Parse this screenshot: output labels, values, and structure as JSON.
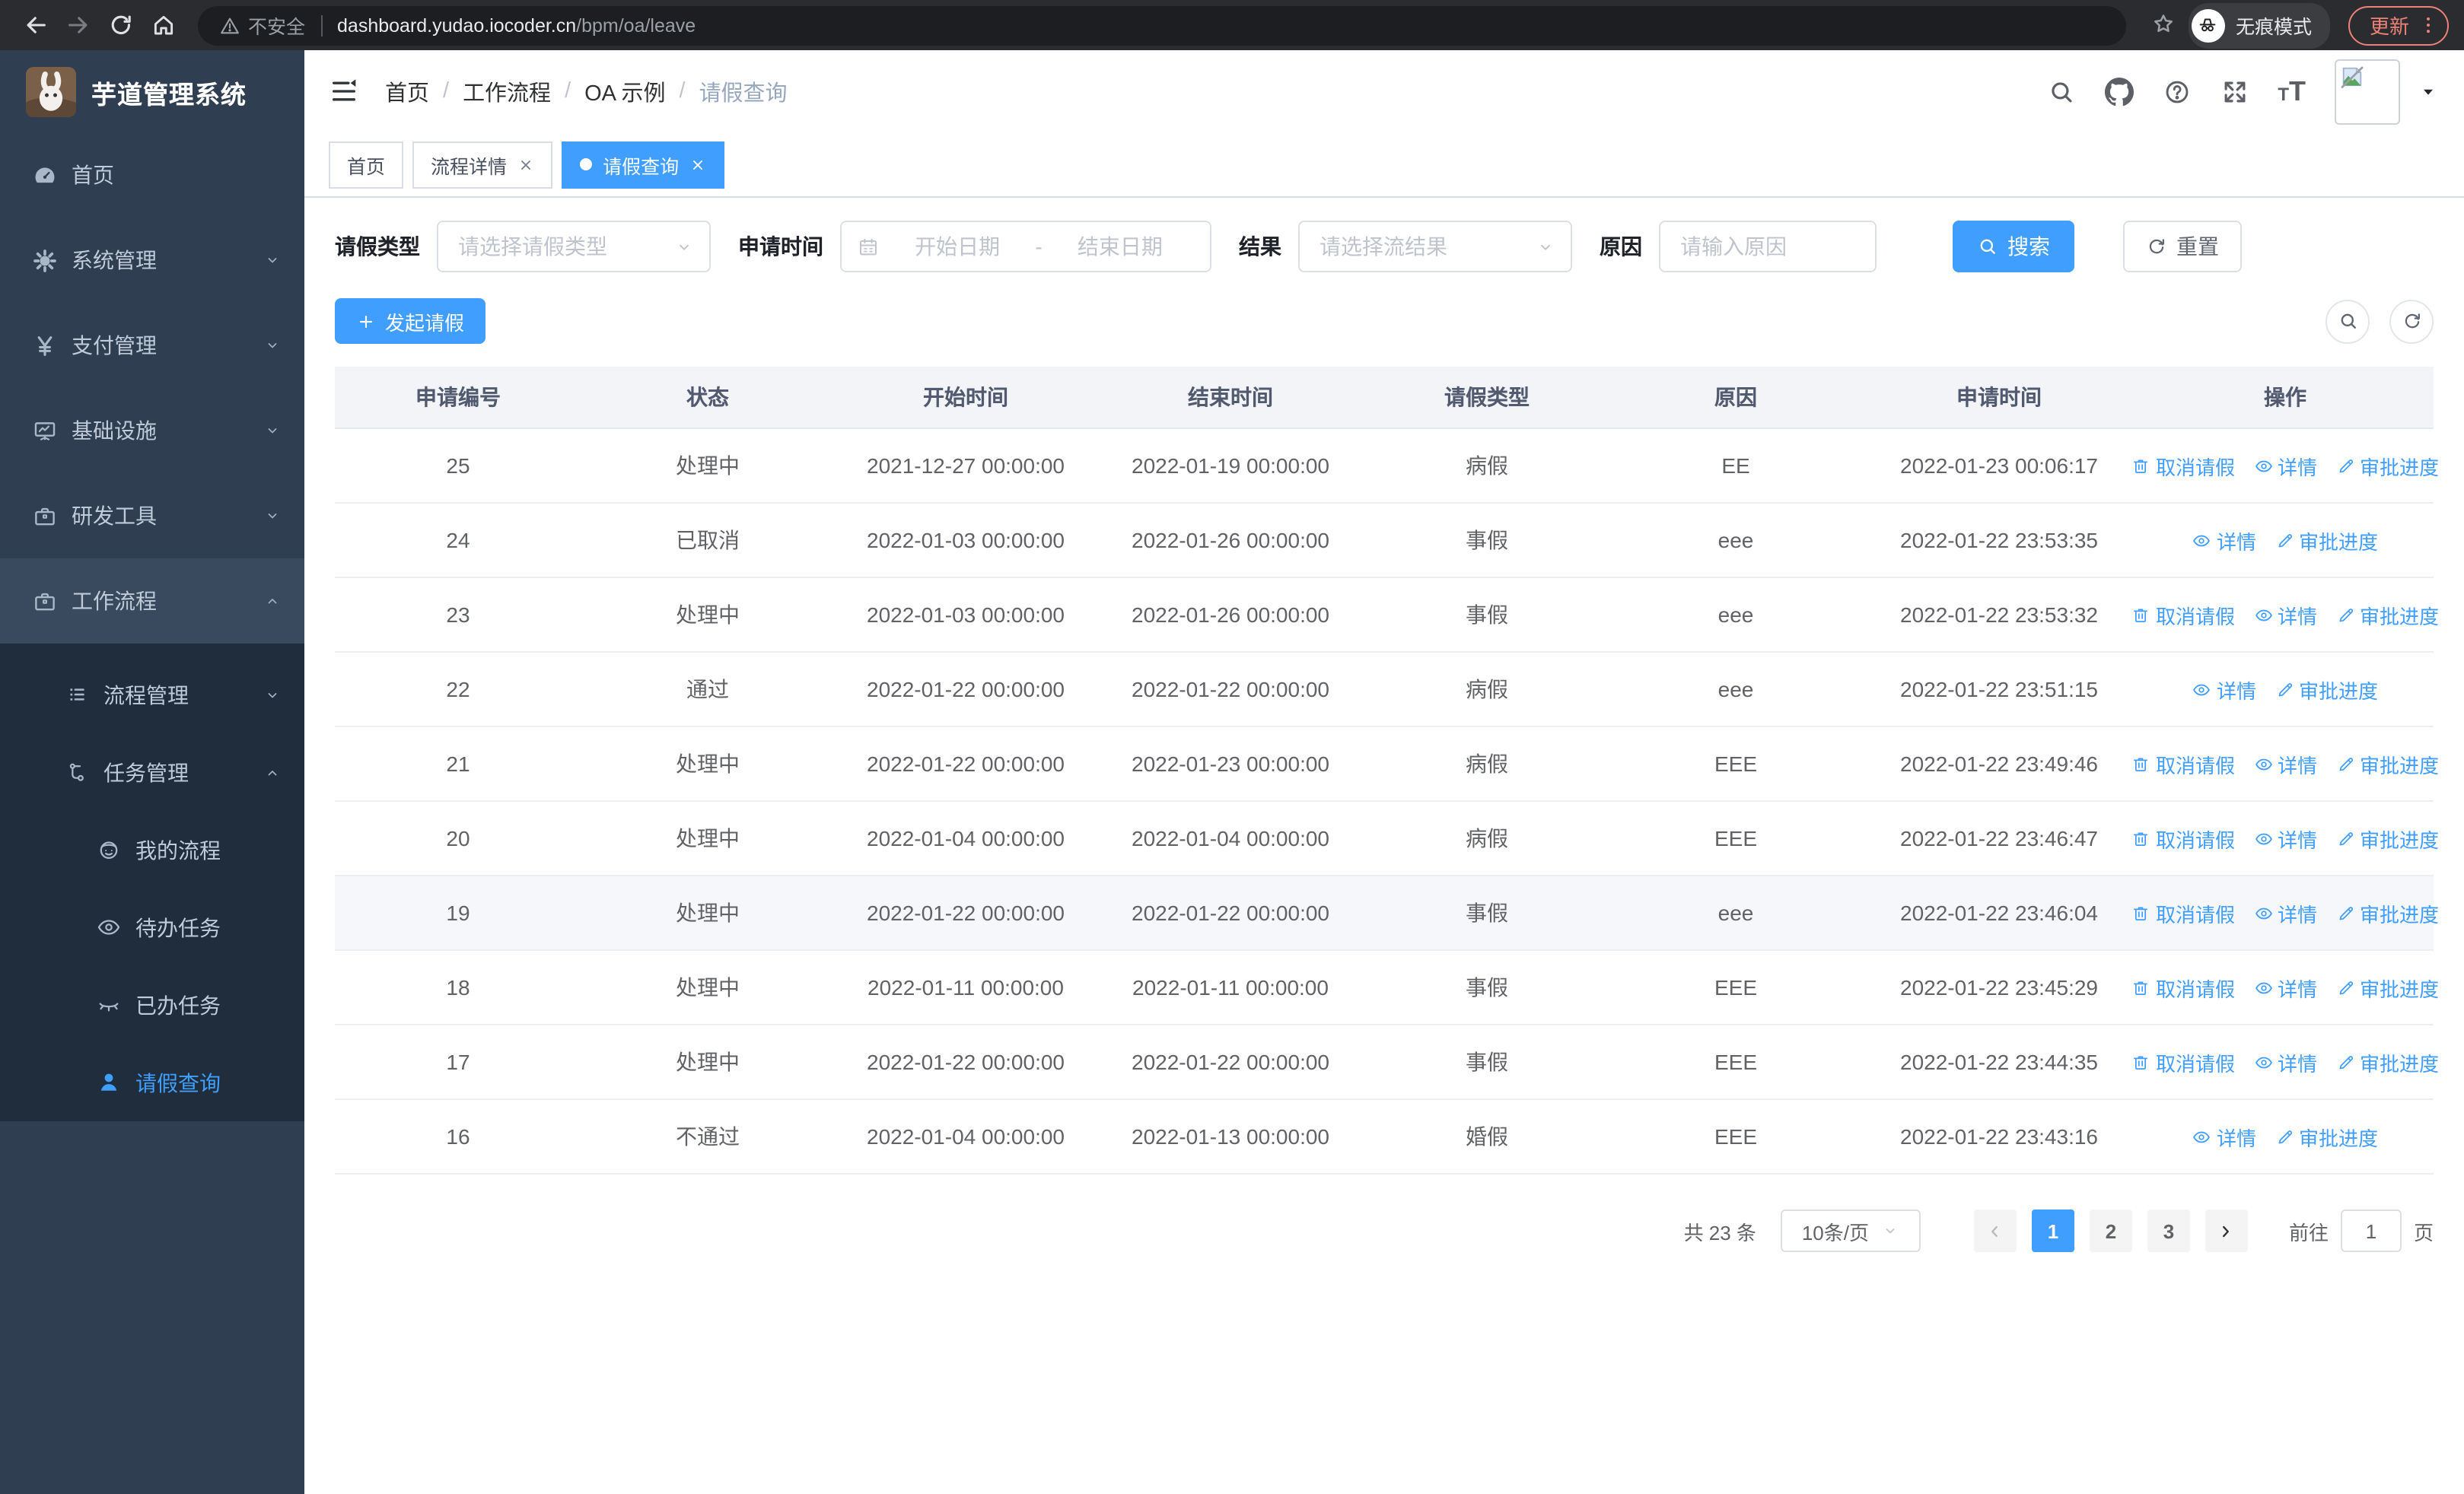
{
  "colors": {
    "primary": "#409EFF",
    "sidebar_bg": "#2f3e51",
    "submenu_bg": "#1f2d3d",
    "update_accent": "#ee8277"
  },
  "browser": {
    "security_label": "不安全",
    "url_host": "dashboard.yudao.iocoder.cn",
    "url_path": "/bpm/oa/leave",
    "incognito_label": "无痕模式",
    "update_label": "更新"
  },
  "sidebar": {
    "title": "芋道管理系统",
    "items": [
      {
        "id": "home",
        "label": "首页",
        "icon": "gauge",
        "level": 1
      },
      {
        "id": "system",
        "label": "系统管理",
        "icon": "gear",
        "level": 1,
        "chevron": "down"
      },
      {
        "id": "payment",
        "label": "支付管理",
        "icon": "yen",
        "level": 1,
        "chevron": "down"
      },
      {
        "id": "infra",
        "label": "基础设施",
        "icon": "monitor",
        "level": 1,
        "chevron": "down"
      },
      {
        "id": "devtools",
        "label": "研发工具",
        "icon": "briefcase",
        "level": 1,
        "chevron": "down"
      },
      {
        "id": "workflow",
        "label": "工作流程",
        "icon": "briefcase",
        "level": 1,
        "chevron": "up",
        "highlight": true
      },
      {
        "id": "process-mgmt",
        "label": "流程管理",
        "icon": "list",
        "level": 2,
        "chevron": "down",
        "dark": true
      },
      {
        "id": "task-mgmt",
        "label": "任务管理",
        "icon": "org",
        "level": 2,
        "chevron": "up",
        "dark": true
      },
      {
        "id": "my-process",
        "label": "我的流程",
        "icon": "face",
        "level": 3,
        "dark": true
      },
      {
        "id": "todo-tasks",
        "label": "待办任务",
        "icon": "eye",
        "level": 3,
        "dark": true
      },
      {
        "id": "done-tasks",
        "label": "已办任务",
        "icon": "eye-closed",
        "level": 3,
        "dark": true
      },
      {
        "id": "leave-query",
        "label": "请假查询",
        "icon": "person",
        "level": 3,
        "dark": true,
        "active": true
      }
    ]
  },
  "breadcrumb": {
    "separator": "/",
    "items": [
      "首页",
      "工作流程",
      "OA 示例",
      "请假查询"
    ]
  },
  "tabs": [
    {
      "id": "home",
      "label": "首页",
      "closable": false,
      "active": false
    },
    {
      "id": "process-detail",
      "label": "流程详情",
      "closable": true,
      "active": false
    },
    {
      "id": "leave-query",
      "label": "请假查询",
      "closable": true,
      "active": true
    }
  ],
  "filters": {
    "leave_type_label": "请假类型",
    "leave_type_placeholder": "请选择请假类型",
    "apply_time_label": "申请时间",
    "start_date_placeholder": "开始日期",
    "range_separator": "-",
    "end_date_placeholder": "结束日期",
    "result_label": "结果",
    "result_placeholder": "请选择流结果",
    "reason_label": "原因",
    "reason_placeholder": "请输入原因",
    "search_label": "搜索",
    "reset_label": "重置"
  },
  "toolbar": {
    "create_label": "发起请假"
  },
  "table": {
    "columns": [
      "申请编号",
      "状态",
      "开始时间",
      "结束时间",
      "请假类型",
      "原因",
      "申请时间",
      "操作"
    ],
    "action_defs": {
      "cancel": {
        "label": "取消请假",
        "icon": "trash"
      },
      "detail": {
        "label": "详情",
        "icon": "eye"
      },
      "progress": {
        "label": "审批进度",
        "icon": "pen"
      }
    },
    "rows": [
      {
        "id": "25",
        "status": "处理中",
        "start": "2021-12-27 00:00:00",
        "end": "2022-01-19 00:00:00",
        "type": "病假",
        "reason": "EE",
        "apply": "2022-01-23 00:06:17",
        "actions": [
          "cancel",
          "detail",
          "progress"
        ]
      },
      {
        "id": "24",
        "status": "已取消",
        "start": "2022-01-03 00:00:00",
        "end": "2022-01-26 00:00:00",
        "type": "事假",
        "reason": "eee",
        "apply": "2022-01-22 23:53:35",
        "actions": [
          "detail",
          "progress"
        ]
      },
      {
        "id": "23",
        "status": "处理中",
        "start": "2022-01-03 00:00:00",
        "end": "2022-01-26 00:00:00",
        "type": "事假",
        "reason": "eee",
        "apply": "2022-01-22 23:53:32",
        "actions": [
          "cancel",
          "detail",
          "progress"
        ]
      },
      {
        "id": "22",
        "status": "通过",
        "start": "2022-01-22 00:00:00",
        "end": "2022-01-22 00:00:00",
        "type": "病假",
        "reason": "eee",
        "apply": "2022-01-22 23:51:15",
        "actions": [
          "detail",
          "progress"
        ]
      },
      {
        "id": "21",
        "status": "处理中",
        "start": "2022-01-22 00:00:00",
        "end": "2022-01-23 00:00:00",
        "type": "病假",
        "reason": "EEE",
        "apply": "2022-01-22 23:49:46",
        "actions": [
          "cancel",
          "detail",
          "progress"
        ]
      },
      {
        "id": "20",
        "status": "处理中",
        "start": "2022-01-04 00:00:00",
        "end": "2022-01-04 00:00:00",
        "type": "病假",
        "reason": "EEE",
        "apply": "2022-01-22 23:46:47",
        "actions": [
          "cancel",
          "detail",
          "progress"
        ]
      },
      {
        "id": "19",
        "status": "处理中",
        "start": "2022-01-22 00:00:00",
        "end": "2022-01-22 00:00:00",
        "type": "事假",
        "reason": "eee",
        "apply": "2022-01-22 23:46:04",
        "actions": [
          "cancel",
          "detail",
          "progress"
        ],
        "hover": true
      },
      {
        "id": "18",
        "status": "处理中",
        "start": "2022-01-11 00:00:00",
        "end": "2022-01-11 00:00:00",
        "type": "事假",
        "reason": "EEE",
        "apply": "2022-01-22 23:45:29",
        "actions": [
          "cancel",
          "detail",
          "progress"
        ]
      },
      {
        "id": "17",
        "status": "处理中",
        "start": "2022-01-22 00:00:00",
        "end": "2022-01-22 00:00:00",
        "type": "事假",
        "reason": "EEE",
        "apply": "2022-01-22 23:44:35",
        "actions": [
          "cancel",
          "detail",
          "progress"
        ]
      },
      {
        "id": "16",
        "status": "不通过",
        "start": "2022-01-04 00:00:00",
        "end": "2022-01-13 00:00:00",
        "type": "婚假",
        "reason": "EEE",
        "apply": "2022-01-22 23:43:16",
        "actions": [
          "detail",
          "progress"
        ]
      }
    ]
  },
  "pagination": {
    "total_label": "共 23 条",
    "page_size_label": "10条/页",
    "pages": [
      "1",
      "2",
      "3"
    ],
    "current_page": "1",
    "goto_label": "前往",
    "goto_value": "1",
    "page_unit_label": "页"
  }
}
